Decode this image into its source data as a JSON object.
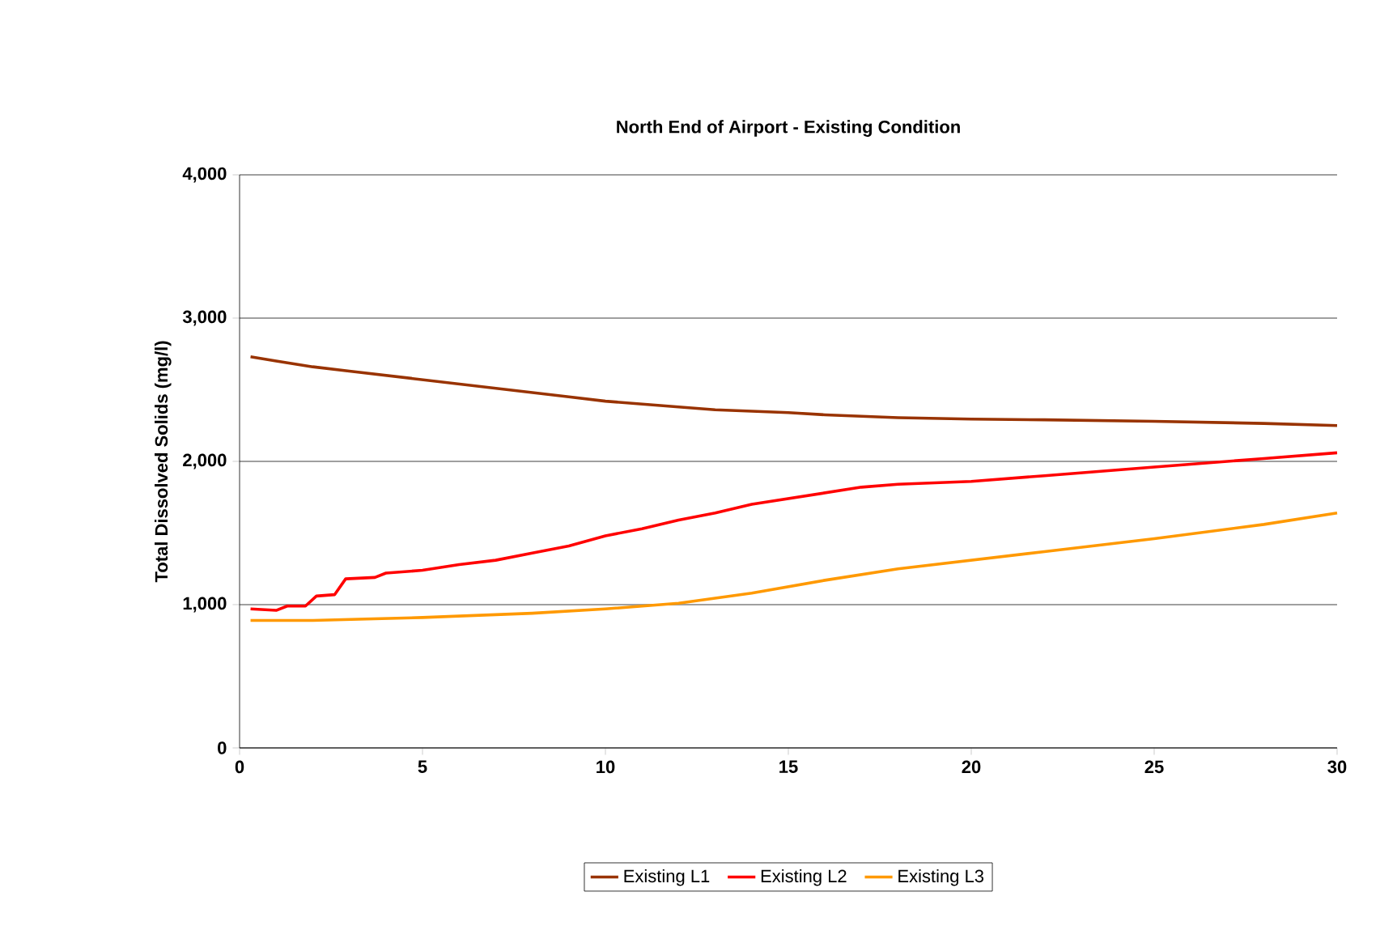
{
  "chart_data": {
    "type": "line",
    "title": "North End of Airport - Existing Condition",
    "ylabel": "Total Dissolved Solids (mg/l)",
    "xlim": [
      0,
      30
    ],
    "xticks": [
      0,
      5,
      10,
      15,
      20,
      25,
      30
    ],
    "ylim": [
      0,
      4000
    ],
    "yticks": [
      0,
      {
        "value": 1000,
        "label": "1,000"
      },
      {
        "value": 2000,
        "label": "2,000"
      },
      {
        "value": 3000,
        "label": "3,000"
      },
      {
        "value": 4000,
        "label": "4,000"
      }
    ],
    "grid": "y",
    "legend": "bottom",
    "marker": "none",
    "line_style": "solid",
    "series": [
      {
        "name": "Existing L1",
        "color": "#993300",
        "x": [
          0.3,
          1,
          2,
          3,
          4,
          5,
          6,
          7,
          8,
          9,
          10,
          11,
          12,
          13,
          14,
          15,
          16,
          17,
          18,
          20,
          22,
          25,
          28,
          30
        ],
        "values": [
          2730,
          2700,
          2660,
          2630,
          2600,
          2570,
          2540,
          2510,
          2480,
          2450,
          2420,
          2400,
          2380,
          2360,
          2350,
          2340,
          2325,
          2315,
          2305,
          2295,
          2290,
          2280,
          2265,
          2250
        ]
      },
      {
        "name": "Existing L2",
        "color": "#ff0000",
        "x": [
          0.3,
          1,
          1.3,
          1.8,
          2.1,
          2.6,
          2.9,
          3.7,
          4,
          5,
          6,
          7,
          8,
          9,
          10,
          11,
          12,
          13,
          14,
          15,
          16,
          17,
          18,
          20,
          22,
          25,
          28,
          30
        ],
        "values": [
          970,
          960,
          990,
          990,
          1060,
          1070,
          1180,
          1190,
          1220,
          1240,
          1280,
          1310,
          1360,
          1410,
          1480,
          1530,
          1590,
          1640,
          1700,
          1740,
          1780,
          1820,
          1840,
          1860,
          1900,
          1960,
          2020,
          2060
        ]
      },
      {
        "name": "Existing L3",
        "color": "#ff9900",
        "x": [
          0.3,
          2,
          5,
          8,
          10,
          12,
          14,
          16,
          18,
          20,
          22,
          25,
          28,
          30
        ],
        "values": [
          890,
          890,
          910,
          940,
          970,
          1010,
          1080,
          1170,
          1250,
          1310,
          1370,
          1460,
          1560,
          1640
        ]
      }
    ]
  }
}
